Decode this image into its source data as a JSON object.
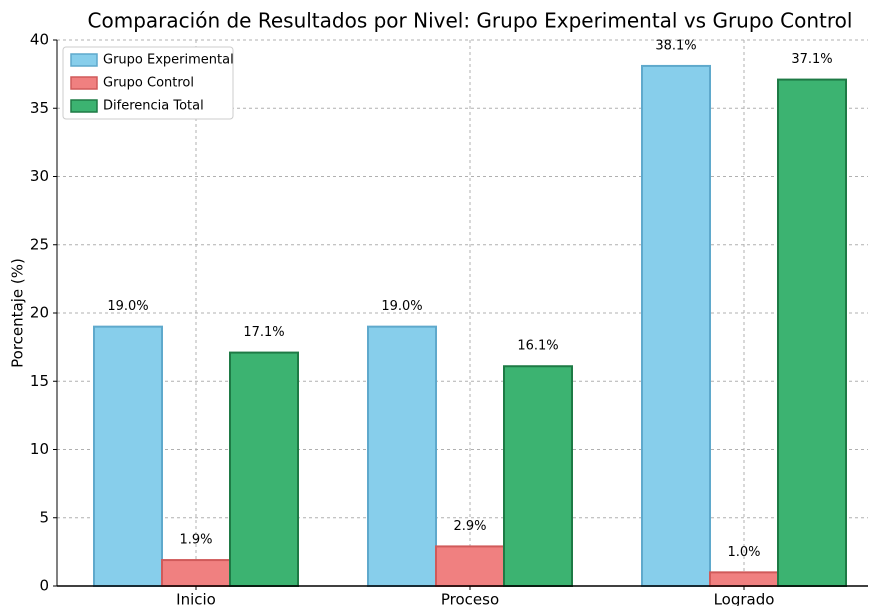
{
  "chart_data": {
    "type": "bar",
    "title": "Comparación de Resultados por Nivel: Grupo Experimental vs Grupo Control",
    "y_label": "Porcentaje (%)",
    "categories": [
      "Inicio",
      "Proceso",
      "Logrado"
    ],
    "series": [
      {
        "name": "Grupo Experimental",
        "color": "#87ceeb",
        "edge": "#5fa9cc",
        "values": [
          19.0,
          19.0,
          38.1
        ],
        "value_labels": [
          "19.0%",
          "19.0%",
          "38.1%"
        ]
      },
      {
        "name": "Grupo Control",
        "color": "#f08080",
        "edge": "#d05a5a",
        "values": [
          1.9,
          2.9,
          1.0
        ],
        "value_labels": [
          "1.9%",
          "2.9%",
          "1.0%"
        ]
      },
      {
        "name": "Diferencia Total",
        "color": "#3cb371",
        "edge": "#1e7a45",
        "values": [
          17.1,
          16.1,
          37.1
        ],
        "value_labels": [
          "17.1%",
          "16.1%",
          "37.1%"
        ]
      }
    ],
    "ylim": [
      0,
      40
    ],
    "yticks": [
      0,
      5,
      10,
      15,
      20,
      25,
      30,
      35,
      40
    ],
    "grid": true,
    "legend": "upper left"
  }
}
